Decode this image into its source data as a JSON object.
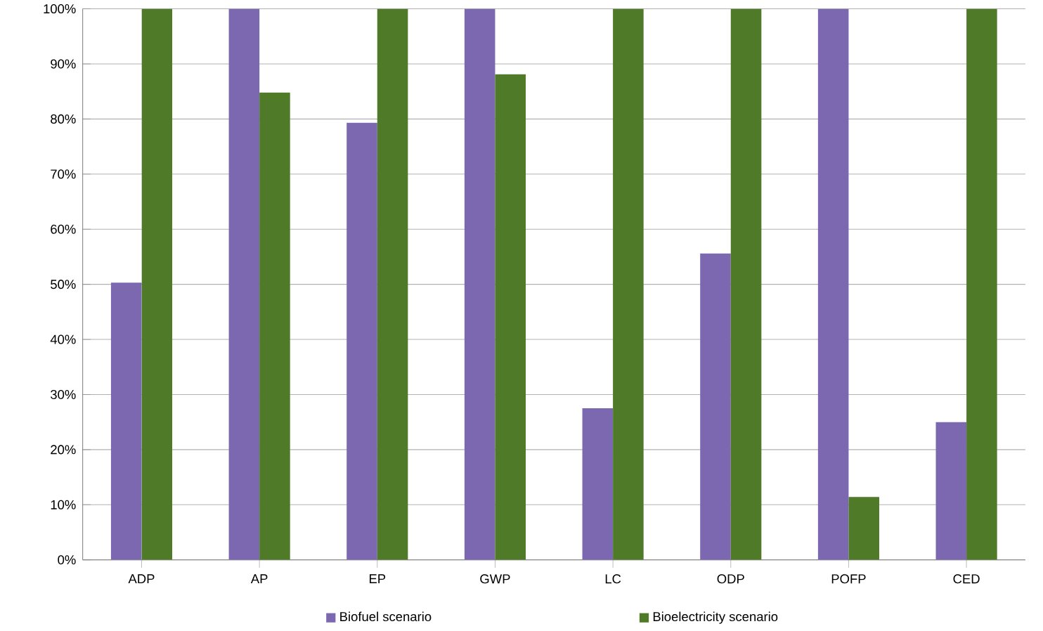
{
  "chart_data": {
    "type": "bar",
    "categories": [
      "ADP",
      "AP",
      "EP",
      "GWP",
      "LC",
      "ODP",
      "POFP",
      "CED"
    ],
    "series": [
      {
        "name": "Biofuel scenario",
        "color": "#7b68b0",
        "values": [
          50.3,
          100,
          79.3,
          100,
          27.5,
          55.6,
          100,
          25
        ]
      },
      {
        "name": "Bioelectricity scenario",
        "color": "#4f7a28",
        "values": [
          100,
          84.8,
          100,
          88.1,
          100,
          100,
          11.4,
          100
        ]
      }
    ],
    "ylim": [
      0,
      100
    ],
    "yticks": [
      {
        "value": 0,
        "label": "0%"
      },
      {
        "value": 10,
        "label": "10%"
      },
      {
        "value": 20,
        "label": "20%"
      },
      {
        "value": 30,
        "label": "30%"
      },
      {
        "value": 40,
        "label": "40%"
      },
      {
        "value": 50,
        "label": "50%"
      },
      {
        "value": 60,
        "label": "60%"
      },
      {
        "value": 70,
        "label": "70%"
      },
      {
        "value": 80,
        "label": "80%"
      },
      {
        "value": 90,
        "label": "90%"
      },
      {
        "value": 100,
        "label": "100%"
      }
    ],
    "grid": "y",
    "legend": "bottom"
  }
}
